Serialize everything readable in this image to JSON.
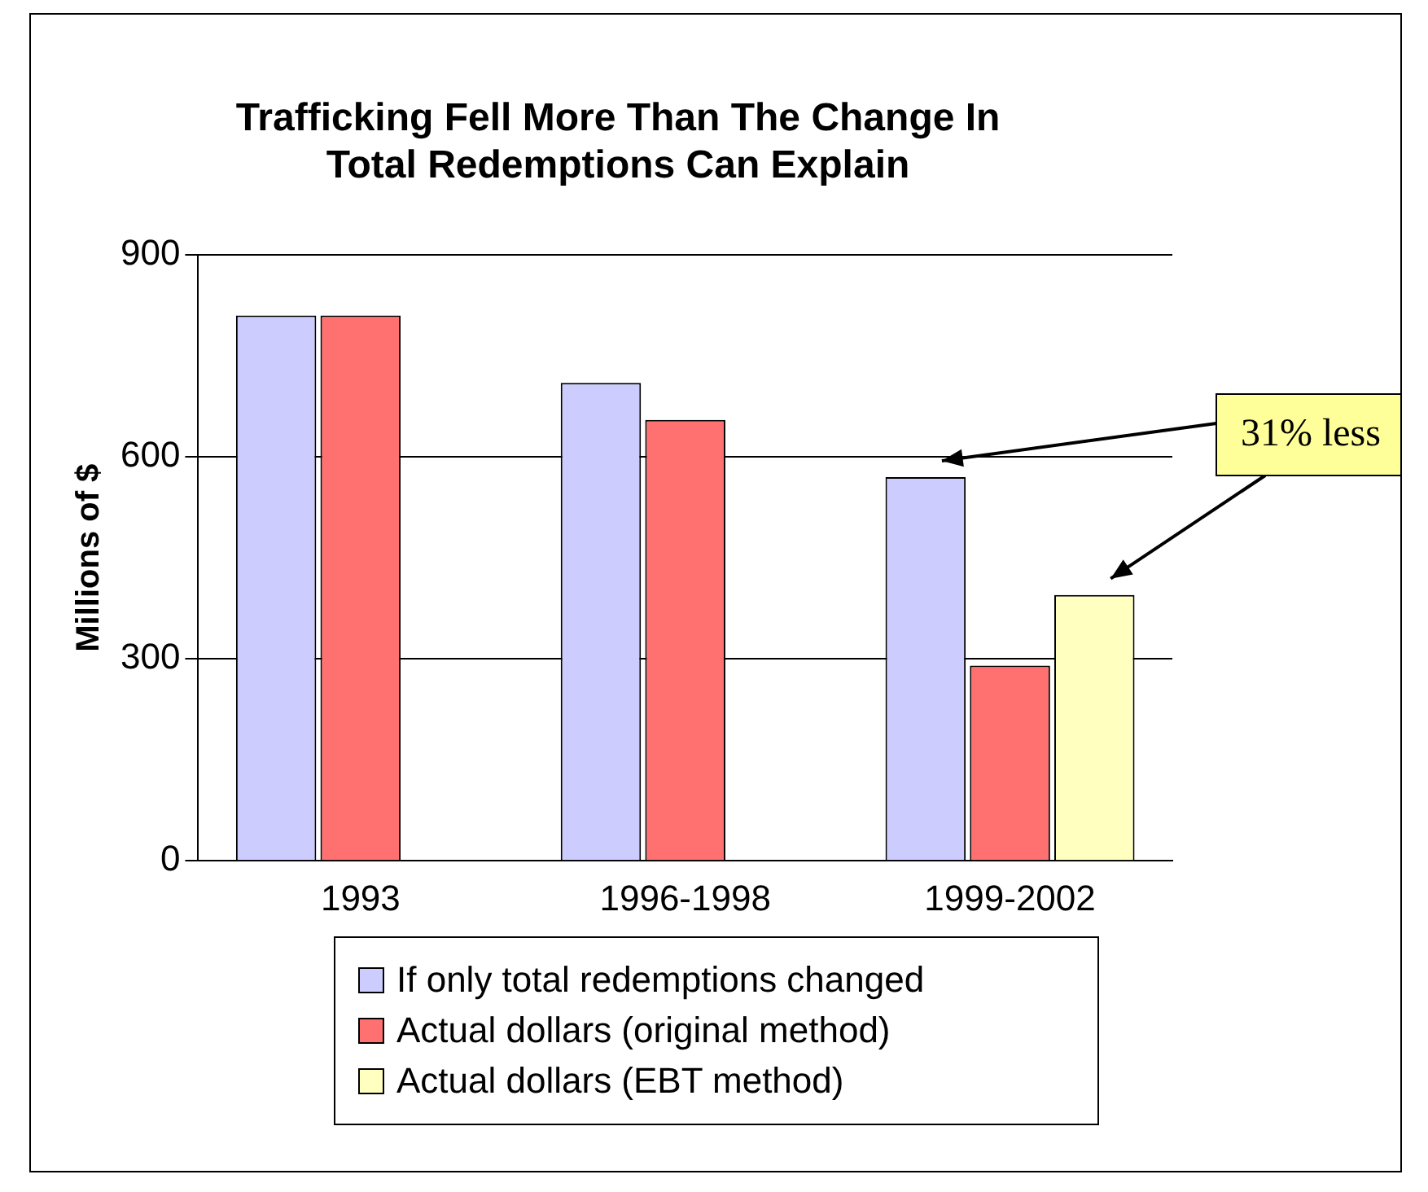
{
  "chart_data": {
    "type": "bar",
    "title": "Trafficking Fell More Than The Change In\nTotal Redemptions Can Explain",
    "ylabel": "Millions of $",
    "categories": [
      "1993",
      "1996-1998",
      "1999-2002"
    ],
    "series": [
      {
        "name": "If only total redemptions changed",
        "color": "#ccccff",
        "values": [
          810,
          710,
          570
        ]
      },
      {
        "name": "Actual dollars (original method)",
        "color": "#ff7070",
        "values": [
          810,
          655,
          290
        ]
      },
      {
        "name": "Actual dollars (EBT method)",
        "color": "#ffffc0",
        "values": [
          null,
          null,
          395
        ]
      }
    ],
    "ylim": [
      0,
      900
    ],
    "yticks": [
      0,
      300,
      600,
      900
    ],
    "grid": "y",
    "legend": "bottom",
    "annotations": [
      "31% less"
    ]
  }
}
